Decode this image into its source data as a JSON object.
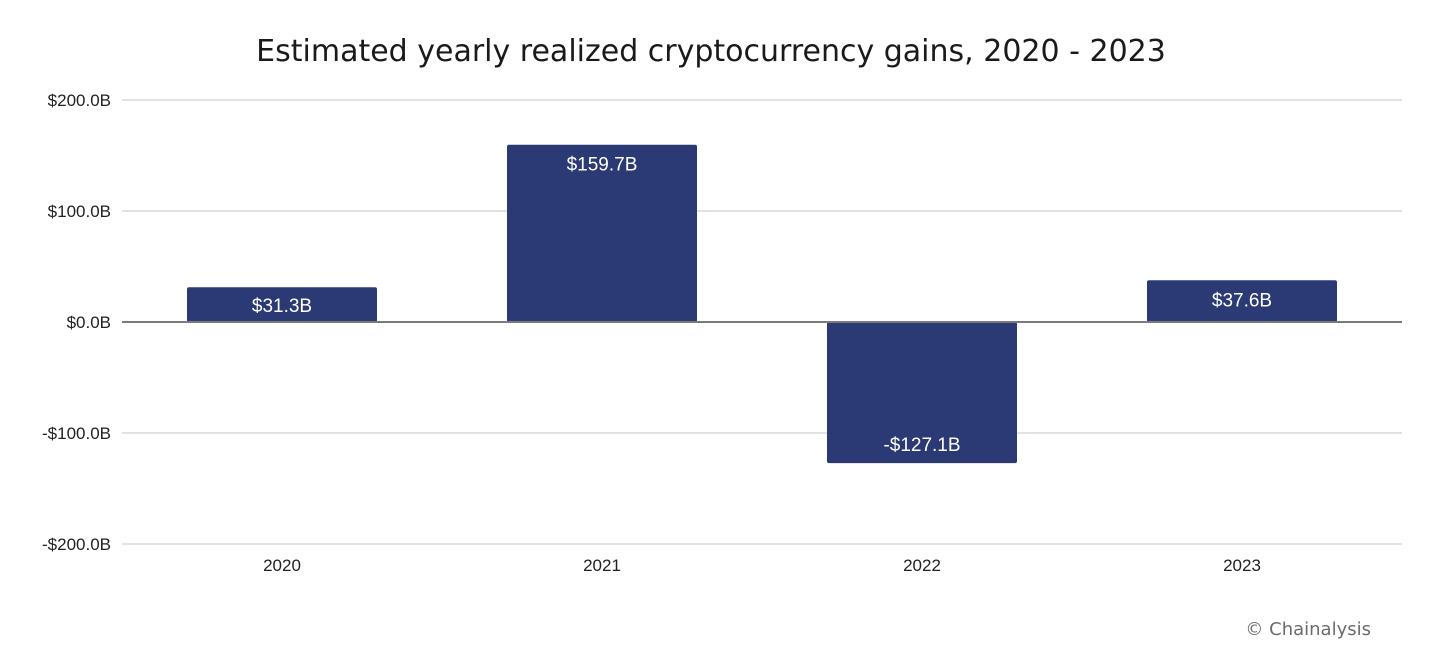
{
  "chart_data": {
    "type": "bar",
    "title": "Estimated yearly realized cryptocurrency gains, 2020 - 2023",
    "xlabel": "",
    "ylabel": "",
    "categories": [
      "2020",
      "2021",
      "2022",
      "2023"
    ],
    "values": [
      31.3,
      159.7,
      -127.1,
      37.6
    ],
    "data_labels": [
      "$31.3B",
      "$159.7B",
      "-$127.1B",
      "$37.6B"
    ],
    "ylim": [
      -200,
      200
    ],
    "yticks": [
      200,
      100,
      0,
      -100,
      -200
    ],
    "ytick_labels": [
      "$200.0B",
      "$100.0B",
      "$0.0B",
      "-$100.0B",
      "-$200.0B"
    ],
    "grid": true,
    "legend": "none",
    "bar_color": "#2b3a74",
    "grid_color": "#d9d9d9",
    "zero_line_color": "#7a7a7a"
  },
  "credit": "© Chainalysis"
}
